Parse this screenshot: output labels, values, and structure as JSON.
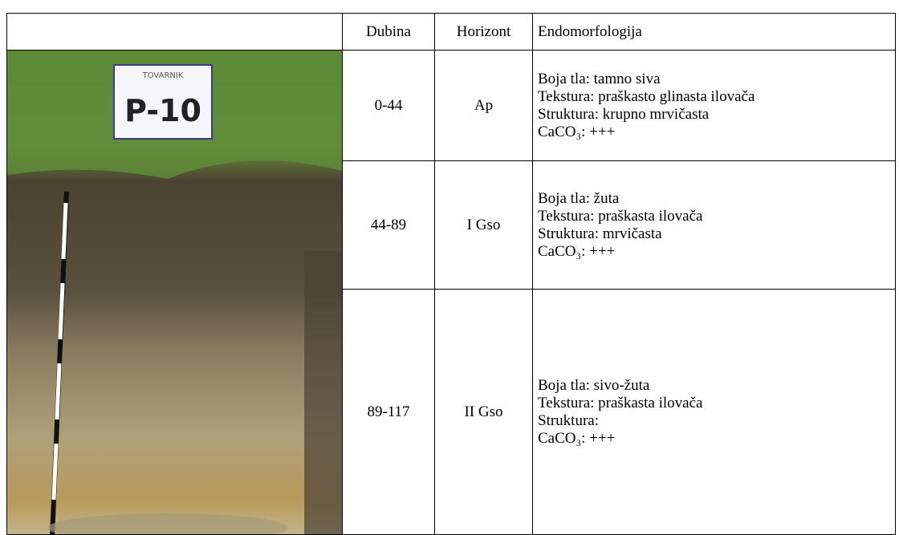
{
  "photo": {
    "sign_title": "TOVARNIK",
    "sign_label": "P-10"
  },
  "table": {
    "header": [
      "Dubina",
      "Horizont",
      "Endomorfologija"
    ],
    "rows": [
      {
        "depth": "0-44",
        "horizon": "Ap",
        "lines": [
          "Boja tla: tamno siva",
          "Tekstura: praškasto glinasta ilovača",
          "Struktura: krupno mrvičasta",
          "CaCO₃: +++"
        ]
      },
      {
        "depth": "44-89",
        "horizon": "I Gso",
        "lines": [
          "Boja tla: žuta",
          "Tekstura: praškasta ilovača",
          "Struktura: mrvičasta",
          "CaCO₃: +++"
        ]
      },
      {
        "depth": "89-117",
        "horizon": "II Gso",
        "lines": [
          "Boja tla: sivo-žuta",
          "Tekstura: praškasta ilovača",
          "Struktura:",
          "CaCO₃: +++"
        ]
      }
    ]
  }
}
